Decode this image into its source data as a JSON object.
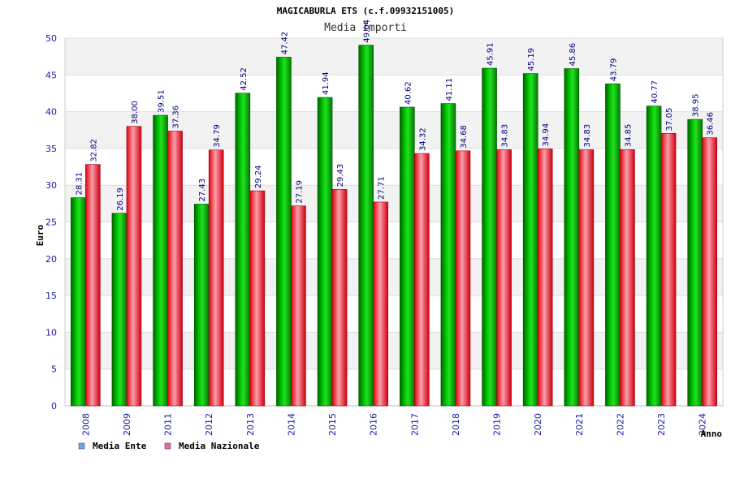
{
  "chart_data": {
    "type": "bar",
    "title": "MAGICABURLA ETS (c.f.09932151005)",
    "subtitle": "Media Importi",
    "ylabel": "Euro",
    "xlabel": "Anno",
    "ylim": [
      0,
      50
    ],
    "yticks": [
      0,
      5,
      10,
      15,
      20,
      25,
      30,
      35,
      40,
      45,
      50
    ],
    "grid": true,
    "categories": [
      "2008",
      "2009",
      "2011",
      "2012",
      "2013",
      "2014",
      "2015",
      "2016",
      "2017",
      "2018",
      "2019",
      "2020",
      "2021",
      "2022",
      "2023",
      "2024"
    ],
    "series": [
      {
        "name": "Media Ente",
        "color": "#00a000",
        "legend_color": "#6fa8e8",
        "values": [
          28.31,
          26.19,
          39.51,
          27.43,
          42.52,
          47.42,
          41.94,
          49.04,
          40.62,
          41.11,
          45.91,
          45.19,
          45.86,
          43.79,
          40.77,
          38.95
        ],
        "labels": [
          "28.31",
          "26.19",
          "39.51",
          "27.43",
          "42.52",
          "47.42",
          "41.94",
          "49.04",
          "40.62",
          "41.11",
          "45.91",
          "45.19",
          "45.86",
          "43.79",
          "40.77",
          "38.95"
        ]
      },
      {
        "name": "Media Nazionale",
        "color": "#e01020",
        "legend_color": "#e070a0",
        "values": [
          32.82,
          38.0,
          37.36,
          34.79,
          29.24,
          27.19,
          29.43,
          27.71,
          34.32,
          34.68,
          34.83,
          34.94,
          34.83,
          34.85,
          37.05,
          36.46
        ],
        "labels": [
          "32.82",
          "38.00",
          "37.36",
          "34.79",
          "29.24",
          "27.19",
          "29.43",
          "27.71",
          "34.32",
          "34.68",
          "34.83",
          "34.94",
          "34.83",
          "34.85",
          "37.05",
          "36.46"
        ]
      }
    ],
    "legend_position": "bottom-left"
  }
}
